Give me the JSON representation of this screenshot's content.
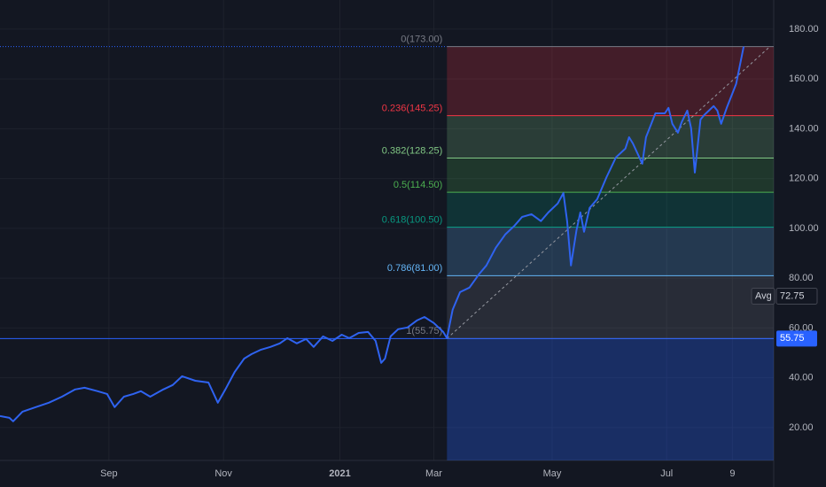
{
  "chart_data": {
    "type": "line",
    "background": "#131722",
    "grid": true,
    "xlim": [
      0,
      412
    ],
    "xticks": [
      {
        "value": 58,
        "label": "Sep"
      },
      {
        "value": 119,
        "label": "Nov"
      },
      {
        "value": 181,
        "label": "2021"
      },
      {
        "value": 231,
        "label": "Mar"
      },
      {
        "value": 294,
        "label": "May"
      },
      {
        "value": 355,
        "label": "Jul"
      },
      {
        "value": 390,
        "label": "9"
      }
    ],
    "ylim": [
      6.8,
      191.7
    ],
    "yticks": [
      {
        "value": 20,
        "label": "20.00"
      },
      {
        "value": 40,
        "label": "40.00"
      },
      {
        "value": 60,
        "label": "60.00"
      },
      {
        "value": 80,
        "label": "80.00"
      },
      {
        "value": 100,
        "label": "100.00"
      },
      {
        "value": 120,
        "label": "120.00"
      },
      {
        "value": 140,
        "label": "140.00"
      },
      {
        "value": 160,
        "label": "160.00"
      },
      {
        "value": 180,
        "label": "180.00"
      }
    ],
    "series": [
      {
        "color": "#2f63f0",
        "x": [
          0,
          5,
          7,
          12,
          19,
          26,
          33,
          40,
          45,
          52,
          57,
          61,
          66,
          71,
          75,
          80,
          87,
          92,
          97,
          104,
          111,
          116,
          120,
          125,
          130,
          134,
          139,
          144,
          149,
          153,
          158,
          163,
          167,
          172,
          177,
          182,
          186,
          191,
          196,
          200,
          203,
          205,
          208,
          212,
          217,
          222,
          226,
          231,
          236,
          238,
          241,
          245,
          250,
          255,
          259,
          264,
          269,
          274,
          278,
          283,
          288,
          292,
          297,
          300,
          302,
          304,
          307,
          309,
          311,
          314,
          318,
          323,
          328,
          333,
          335,
          337,
          342,
          344,
          349,
          354,
          356,
          358,
          361,
          363,
          366,
          368,
          370,
          373,
          375,
          380,
          382,
          384,
          387,
          392,
          396
        ],
        "values": [
          24.6,
          23.9,
          22.5,
          26.4,
          28.2,
          30.0,
          32.4,
          35.3,
          36.0,
          34.6,
          33.5,
          28.2,
          32.4,
          33.5,
          34.6,
          32.4,
          35.3,
          37.1,
          40.6,
          38.8,
          38.1,
          30.0,
          35.3,
          42.4,
          47.7,
          49.5,
          51.3,
          52.4,
          53.8,
          55.9,
          53.8,
          55.6,
          52.4,
          56.6,
          54.8,
          57.3,
          55.9,
          58.0,
          58.4,
          54.8,
          46.0,
          47.7,
          56.6,
          59.5,
          60.2,
          63.0,
          64.4,
          62.0,
          58.4,
          55.9,
          67.3,
          74.4,
          76.2,
          81.5,
          85.1,
          92.2,
          97.5,
          101.1,
          104.6,
          105.7,
          102.9,
          106.4,
          110.0,
          114.2,
          102.9,
          85.1,
          99.3,
          106.4,
          98.6,
          108.2,
          111.7,
          120.6,
          128.5,
          132.0,
          136.6,
          134.1,
          126.0,
          136.6,
          146.2,
          146.2,
          148.4,
          142.0,
          138.4,
          142.7,
          147.3,
          140.2,
          122.4,
          143.7,
          145.5,
          149.1,
          147.3,
          142.0,
          148.4,
          158.0,
          173.0
        ]
      }
    ],
    "fib": {
      "start_x": 238,
      "levels": [
        {
          "label": "0(173.00)",
          "value": 173,
          "color": "#787b86"
        },
        {
          "label": "0.236(145.25)",
          "value": 145.25,
          "color": "#f23645"
        },
        {
          "label": "0.382(128.25)",
          "value": 128.25,
          "color": "#81c784"
        },
        {
          "label": "0.5(114.50)",
          "value": 114.5,
          "color": "#4caf50"
        },
        {
          "label": "0.618(100.50)",
          "value": 100.5,
          "color": "#089981"
        },
        {
          "label": "0.786(81.00)",
          "value": 81,
          "color": "#64b5f6"
        },
        {
          "label": "1(55.75)",
          "value": 55.75,
          "color": "#787b86"
        }
      ],
      "extension_color": "#2962ff",
      "trend": {
        "x": [
          238,
          410
        ],
        "values": [
          55.75,
          173
        ]
      }
    },
    "price_line": {
      "value": 55.75,
      "color": "#2962ff"
    },
    "average": {
      "label": "Avg",
      "value": 72.75
    }
  }
}
